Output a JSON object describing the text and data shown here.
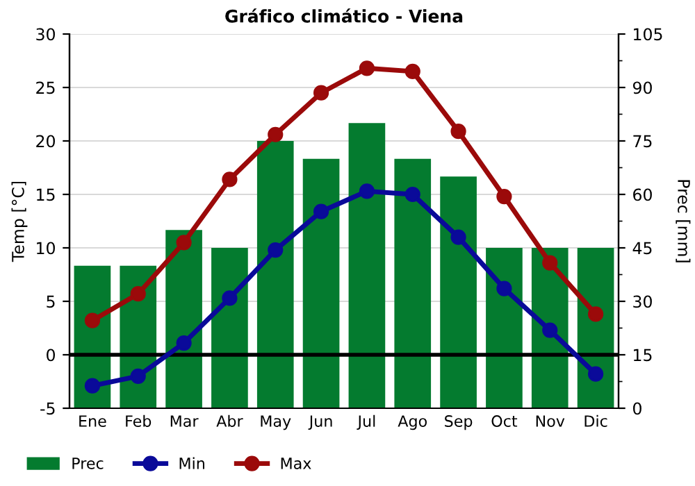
{
  "chart_data": {
    "type": "bar",
    "title": "Gráfico climático - Viena",
    "ylabel": "Temp [°C]",
    "y2label": "Prec [mm]",
    "categories": [
      "Ene",
      "Feb",
      "Mar",
      "Abr",
      "May",
      "Jun",
      "Jul",
      "Ago",
      "Sep",
      "Oct",
      "Nov",
      "Dic"
    ],
    "series": [
      {
        "name": "Prec",
        "axis": "y2",
        "color": "#047b2f",
        "values": [
          40,
          40,
          50,
          45,
          75,
          70,
          80,
          70,
          65,
          45,
          45,
          45
        ]
      },
      {
        "name": "Min",
        "type": "line",
        "axis": "y",
        "color": "#0a0a99",
        "values": [
          -2.9,
          -2.0,
          1.1,
          5.3,
          9.8,
          13.4,
          15.3,
          15.0,
          11.0,
          6.2,
          2.3,
          -1.8
        ]
      },
      {
        "name": "Max",
        "type": "line",
        "axis": "y",
        "color": "#9b0a0a",
        "values": [
          3.2,
          5.7,
          10.5,
          16.4,
          20.6,
          24.5,
          26.8,
          26.5,
          20.9,
          14.8,
          8.6,
          3.8
        ]
      }
    ],
    "ylim": [
      -5,
      30
    ],
    "yticks": [
      -5,
      0,
      5,
      10,
      15,
      20,
      25,
      30
    ],
    "y2lim": [
      0,
      105
    ],
    "y2ticks": [
      0,
      {
        "value": 7.5,
        "label": null
      },
      15,
      {
        "value": 22.5,
        "label": null
      },
      30,
      {
        "value": 37.5,
        "label": null
      },
      45,
      {
        "value": 52.5,
        "label": null
      },
      60,
      {
        "value": 67.5,
        "label": null
      },
      75,
      {
        "value": 82.5,
        "label": null
      },
      90,
      {
        "value": 97.5,
        "label": null
      },
      105
    ],
    "ref_lines": [
      {
        "axis": "y",
        "value": 0,
        "color": "#000000"
      }
    ],
    "grid": true,
    "legend": "bottom",
    "marker": "circle",
    "line_style": "solid"
  }
}
